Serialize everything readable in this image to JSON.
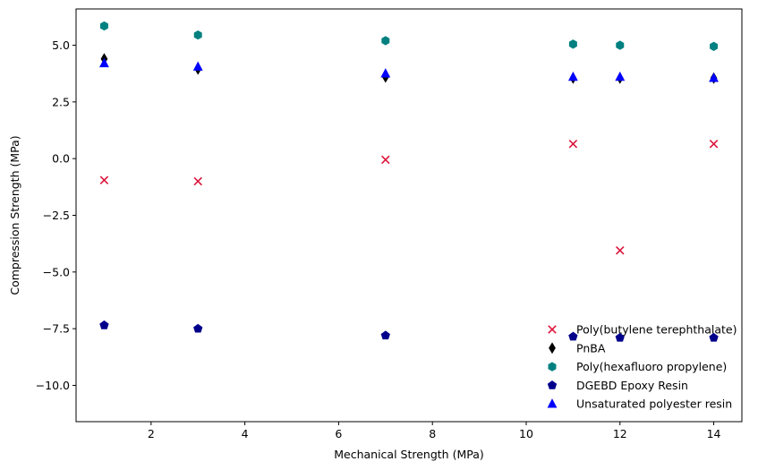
{
  "chart_data": {
    "type": "scatter",
    "xlabel": "Mechanical Strength (MPa)",
    "ylabel": "Compression Strength (MPa)",
    "xlim": [
      0.4,
      14.6
    ],
    "ylim": [
      -11.6,
      6.6
    ],
    "xticks": [
      2,
      4,
      6,
      8,
      10,
      12,
      14
    ],
    "yticks": [
      -10.0,
      -7.5,
      -5.0,
      -2.5,
      0.0,
      2.5,
      5.0
    ],
    "ytick_labels": [
      "−10.0",
      "−7.5",
      "−5.0",
      "−2.5",
      "0.0",
      "2.5",
      "5.0"
    ],
    "grid": false,
    "legend_position": "lower-right",
    "series": [
      {
        "name": "Poly(butylene terephthalate)",
        "marker": "x",
        "color": "#dc143c",
        "x": [
          1,
          3,
          7,
          11,
          12,
          14
        ],
        "y": [
          -0.95,
          -1.0,
          -0.05,
          0.65,
          -4.05,
          0.65
        ]
      },
      {
        "name": "PnBA",
        "marker": "thin-diamond",
        "color": "#000000",
        "x": [
          1,
          3,
          7,
          11,
          12,
          14
        ],
        "y": [
          4.4,
          3.95,
          3.6,
          3.55,
          3.55,
          3.55
        ]
      },
      {
        "name": "Poly(hexafluoro propylene)",
        "marker": "hexagon",
        "color": "#008080",
        "x": [
          1,
          3,
          7,
          11,
          12,
          14
        ],
        "y": [
          5.85,
          5.45,
          5.2,
          5.05,
          5.0,
          4.95
        ]
      },
      {
        "name": "DGEBD Epoxy Resin",
        "marker": "pentagon",
        "color": "#00008b",
        "x": [
          1,
          3,
          7,
          11,
          12,
          14
        ],
        "y": [
          -7.35,
          -7.5,
          -7.8,
          -7.85,
          -7.9,
          -7.9
        ]
      },
      {
        "name": "Unsaturated polyester resin",
        "marker": "triangle",
        "color": "#0000ff",
        "x": [
          1,
          3,
          7,
          11,
          12,
          14
        ],
        "y": [
          4.2,
          4.05,
          3.75,
          3.6,
          3.6,
          3.55
        ]
      }
    ]
  }
}
